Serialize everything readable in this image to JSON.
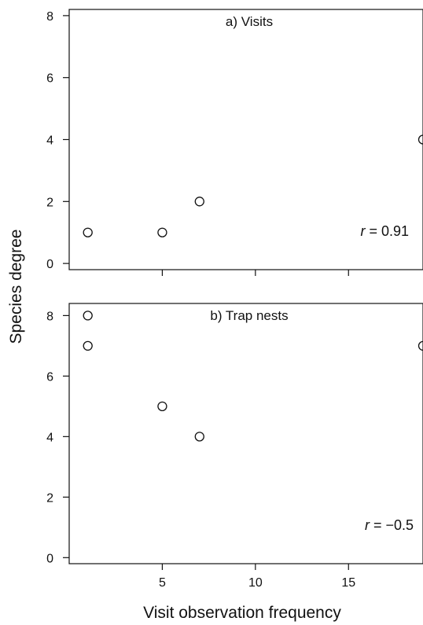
{
  "chart_data": {
    "type": "scatter",
    "xlabel": "Visit observation frequency",
    "ylabel": "Species degree",
    "shared_x": true,
    "xlim": [
      0.0,
      19.0
    ],
    "x_ticks": [
      5,
      10,
      15
    ],
    "panels": [
      {
        "title": "a) Visits",
        "ylim": [
          -0.2,
          8.2
        ],
        "y_ticks": [
          0,
          2,
          4,
          6,
          8
        ],
        "points": [
          {
            "x": 1,
            "y": 1
          },
          {
            "x": 5,
            "y": 1
          },
          {
            "x": 7,
            "y": 2
          },
          {
            "x": 19,
            "y": 4
          }
        ],
        "annotation": {
          "italic": "r",
          "rest": " = 0.91"
        }
      },
      {
        "title": "b) Trap nests",
        "ylim": [
          -0.2,
          8.4
        ],
        "y_ticks": [
          0,
          2,
          4,
          6,
          8
        ],
        "points": [
          {
            "x": 1,
            "y": 8
          },
          {
            "x": 1,
            "y": 7
          },
          {
            "x": 5,
            "y": 5
          },
          {
            "x": 7,
            "y": 4
          },
          {
            "x": 19,
            "y": 7
          }
        ],
        "annotation": {
          "italic": "r",
          "rest": " = −0.5"
        }
      }
    ]
  }
}
